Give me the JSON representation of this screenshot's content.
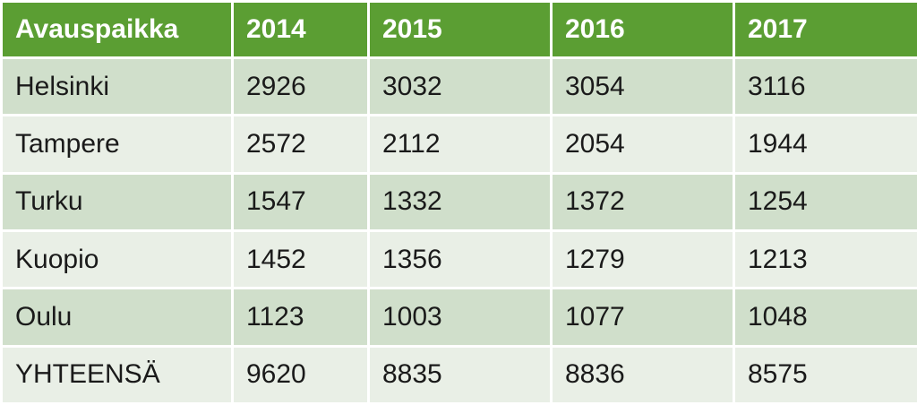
{
  "table": {
    "header": [
      "Avauspaikka",
      "2014",
      "2015",
      "2016",
      "2017"
    ],
    "rows": [
      [
        "Helsinki",
        2926,
        3032,
        3054,
        3116
      ],
      [
        "Tampere",
        2572,
        2112,
        2054,
        1944
      ],
      [
        "Turku",
        1547,
        1332,
        1372,
        1254
      ],
      [
        "Kuopio",
        1452,
        1356,
        1279,
        1213
      ],
      [
        "Oulu",
        1123,
        1003,
        1077,
        1048
      ],
      [
        "YHTEENSÄ",
        9620,
        8835,
        8836,
        8575
      ]
    ]
  }
}
